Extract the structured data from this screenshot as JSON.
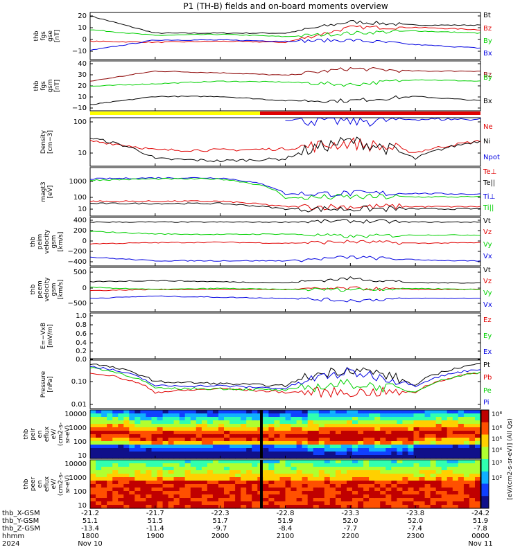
{
  "title": "P1 (TH-B) fields and on-board moments overview",
  "colors": {
    "black": "#000000",
    "red": "#e00000",
    "green": "#00d000",
    "blue": "#0000e0",
    "dark_red": "#8b0000",
    "orb_yellow": "#ffff00",
    "orb_red": "#e00000"
  },
  "panels": [
    {
      "id": "fgs_gse",
      "ylabel": [
        "thb",
        "fgs",
        "gse",
        "[nT]"
      ],
      "ticks": [
        "20",
        "10",
        "0",
        "−10"
      ],
      "ylim": [
        -18,
        23
      ],
      "legend": [
        {
          "text": "Bt",
          "color": "#000000"
        },
        {
          "text": "Bz",
          "color": "#e00000"
        },
        {
          "text": "By",
          "color": "#00d000"
        },
        {
          "text": "Bx",
          "color": "#0000e0"
        }
      ]
    },
    {
      "id": "fgs_gsm",
      "ylabel": [
        "thb",
        "fgs",
        "gsm",
        "[nT]"
      ],
      "ticks": [
        "40",
        "30",
        "20",
        "10",
        "0",
        "−10"
      ],
      "ylim": [
        -17,
        42
      ],
      "legend": [
        {
          "text": "Bz",
          "color": "#8b0000"
        },
        {
          "text": "By",
          "color": "#00d000"
        },
        {
          "text": "Bx",
          "color": "#000000"
        }
      ]
    },
    {
      "id": "density",
      "ylabel": [
        "Density",
        "[cm−3]"
      ],
      "ticks": [
        "100",
        "10"
      ],
      "log": true,
      "ylim": [
        5,
        110
      ],
      "legend": [
        {
          "text": "Ne",
          "color": "#e00000"
        },
        {
          "text": "Ni",
          "color": "#000000"
        },
        {
          "text": "Npot",
          "color": "#0000e0"
        }
      ]
    },
    {
      "id": "temp",
      "ylabel": [
        "magt3",
        "[eV]"
      ],
      "ticks": [
        "1000",
        "100",
        "10"
      ],
      "log": true,
      "ylim": [
        6,
        3000
      ],
      "legend": [
        {
          "text": "Te⊥",
          "color": "#e00000"
        },
        {
          "text": "Te||",
          "color": "#000000"
        },
        {
          "text": "Ti⊥",
          "color": "#0000e0"
        },
        {
          "text": "Ti||",
          "color": "#00d000"
        }
      ]
    },
    {
      "id": "peim_vel",
      "ylabel": [
        "thb",
        "peim",
        "velocity",
        "gsm",
        "[km/s]"
      ],
      "ticks": [
        "400",
        "200",
        "0",
        "−200",
        "−400"
      ],
      "ylim": [
        -470,
        470
      ],
      "legend": [
        {
          "text": "Vt",
          "color": "#000000"
        },
        {
          "text": "Vz",
          "color": "#e00000"
        },
        {
          "text": "Vy",
          "color": "#00d000"
        },
        {
          "text": "Vx",
          "color": "#0000e0"
        }
      ]
    },
    {
      "id": "peem_vel",
      "ylabel": [
        "thb",
        "peem",
        "velocity",
        "gsm",
        "[km/s]"
      ],
      "ticks": [
        "500",
        "0",
        "−500"
      ],
      "ylim": [
        -900,
        1100
      ],
      "legend": [
        {
          "text": "Vt",
          "color": "#000000"
        },
        {
          "text": "Vz",
          "color": "#e00000"
        },
        {
          "text": "Vy",
          "color": "#00d000"
        },
        {
          "text": "Vx",
          "color": "#0000e0"
        }
      ]
    },
    {
      "id": "efield",
      "ylabel": [
        "E=−VxB",
        "[mV/m]"
      ],
      "ticks": [
        "1.0",
        "0.8",
        "0.6",
        "0.4",
        "0.2",
        "0.0"
      ],
      "ylim": [
        -0.03,
        1.03
      ],
      "legend": [
        {
          "text": "Ez",
          "color": "#e00000"
        },
        {
          "text": "Ey",
          "color": "#00d000"
        },
        {
          "text": "Ex",
          "color": "#0000e0"
        }
      ]
    },
    {
      "id": "pressure",
      "ylabel": [
        "Pressure",
        "[nPa]"
      ],
      "ticks": [
        "0.10",
        "0.01"
      ],
      "log": true,
      "ylim": [
        0.008,
        0.4
      ],
      "legend": [
        {
          "text": "Pt",
          "color": "#000000"
        },
        {
          "text": "Pb",
          "color": "#e00000"
        },
        {
          "text": "Pe",
          "color": "#00d000"
        },
        {
          "text": "Pi",
          "color": "#0000e0"
        }
      ]
    },
    {
      "id": "peir_spec",
      "ylabel": [
        "thb",
        "peir",
        "en",
        "eflux",
        "eV/",
        "(cm2-s-",
        "sr-eV)"
      ],
      "ticks": [
        "10000",
        "1000",
        "100",
        "10"
      ]
    },
    {
      "id": "peer_spec",
      "ylabel": [
        "thb",
        "peer",
        "en",
        "eflux",
        "eV/",
        "(cm2-s-",
        "sr-eV)"
      ],
      "ticks": [
        "10000",
        "1000",
        "100",
        "10"
      ]
    }
  ],
  "colorbar": {
    "ticks": [
      "10⁸",
      "10⁶",
      "10⁵",
      "10⁴",
      "10³",
      "10²"
    ],
    "label": "[eV/(cm2-s-sr-eV)] (All Qs)"
  },
  "x_axis": {
    "row_labels": [
      "thb_X-GSM",
      "thb_Y-GSM",
      "thb_Z-GSM",
      "hhmm",
      "2024"
    ],
    "ticks": [
      {
        "x": "-21.2",
        "y": "51.1",
        "z": "-13.4",
        "hhmm": "1800",
        "date": "Nov 10"
      },
      {
        "x": "-21.7",
        "y": "51.5",
        "z": "-11.4",
        "hhmm": "1900",
        "date": ""
      },
      {
        "x": "-22.3",
        "y": "51.7",
        "z": "-9.7",
        "hhmm": "2000",
        "date": ""
      },
      {
        "x": "-22.8",
        "y": "51.9",
        "z": "-8.4",
        "hhmm": "2100",
        "date": ""
      },
      {
        "x": "-23.3",
        "y": "52.0",
        "z": "-7.7",
        "hhmm": "2200",
        "date": ""
      },
      {
        "x": "-23.8",
        "y": "52.0",
        "z": "-7.4",
        "hhmm": "2300",
        "date": ""
      },
      {
        "x": "-24.2",
        "y": "51.9",
        "z": "-7.8",
        "hhmm": "0000",
        "date": "Nov 11"
      }
    ]
  },
  "chart_data": {
    "type": "line",
    "title": "P1 (TH-B) fields and on-board moments overview",
    "x": [
      "1800",
      "1900",
      "2000",
      "2100",
      "2200",
      "2300",
      "0000"
    ],
    "x_unit": "hhmm",
    "series": [
      {
        "name": "Bt",
        "panel": "fgs_gse",
        "values": [
          20,
          5,
          5,
          5,
          15,
          12,
          12
        ]
      },
      {
        "name": "Bz",
        "panel": "fgs_gse",
        "values": [
          -2,
          -3,
          -2,
          -3,
          10,
          10,
          8
        ]
      },
      {
        "name": "By",
        "panel": "fgs_gse",
        "values": [
          8,
          3,
          4,
          2,
          5,
          7,
          5
        ]
      },
      {
        "name": "Bx",
        "panel": "fgs_gse",
        "values": [
          -10,
          -1,
          -1,
          -2,
          -1,
          -5,
          -8
        ]
      },
      {
        "name": "Bz",
        "panel": "fgs_gsm",
        "values": [
          18,
          30,
          28,
          25,
          33,
          30,
          30
        ]
      },
      {
        "name": "By",
        "panel": "fgs_gsm",
        "values": [
          12,
          15,
          18,
          17,
          14,
          20,
          18
        ]
      },
      {
        "name": "Bx",
        "panel": "fgs_gsm",
        "values": [
          -10,
          0,
          0,
          -5,
          -5,
          0,
          -5
        ]
      },
      {
        "name": "Ne",
        "panel": "density",
        "values": [
          25,
          14,
          14,
          15,
          22,
          12,
          25
        ]
      },
      {
        "name": "Ni",
        "panel": "density",
        "values": [
          30,
          8,
          7,
          8,
          25,
          8,
          25
        ]
      },
      {
        "name": "Npot",
        "panel": "density",
        "values": [
          null,
          null,
          null,
          100,
          90,
          100,
          100
        ]
      },
      {
        "name": "Te⊥",
        "panel": "temp",
        "values": [
          40,
          40,
          40,
          20,
          20,
          20,
          20
        ]
      },
      {
        "name": "Te||",
        "panel": "temp",
        "values": [
          30,
          30,
          30,
          15,
          15,
          15,
          15
        ]
      },
      {
        "name": "Ti⊥",
        "panel": "temp",
        "values": [
          700,
          800,
          800,
          100,
          110,
          110,
          100
        ]
      },
      {
        "name": "Ti||",
        "panel": "temp",
        "values": [
          600,
          700,
          700,
          60,
          70,
          70,
          70
        ]
      },
      {
        "name": "Vt",
        "panel": "peim_vel",
        "values": [
          380,
          380,
          380,
          380,
          400,
          380,
          380
        ]
      },
      {
        "name": "Vz",
        "panel": "peim_vel",
        "values": [
          -40,
          -20,
          -10,
          -30,
          0,
          -30,
          -20
        ]
      },
      {
        "name": "Vy",
        "panel": "peim_vel",
        "values": [
          200,
          150,
          140,
          150,
          100,
          130,
          130
        ]
      },
      {
        "name": "Vx",
        "panel": "peim_vel",
        "values": [
          -300,
          -370,
          -370,
          -370,
          -300,
          -350,
          -380
        ]
      },
      {
        "name": "Vt",
        "panel": "peem_vel",
        "values": [
          450,
          500,
          450,
          400,
          600,
          400,
          400
        ]
      },
      {
        "name": "Vz",
        "panel": "peem_vel",
        "values": [
          50,
          100,
          100,
          100,
          150,
          100,
          100
        ]
      },
      {
        "name": "Vy",
        "panel": "peem_vel",
        "values": [
          200,
          100,
          150,
          100,
          100,
          150,
          100
        ]
      },
      {
        "name": "Vx",
        "panel": "peem_vel",
        "values": [
          -300,
          -200,
          -250,
          -300,
          -400,
          -300,
          -300
        ]
      },
      {
        "name": "Pt",
        "panel": "pressure",
        "values": [
          0.3,
          0.07,
          0.06,
          0.05,
          0.2,
          0.05,
          0.3
        ]
      },
      {
        "name": "Pb",
        "panel": "pressure",
        "values": [
          0.15,
          0.03,
          0.04,
          0.03,
          0.03,
          0.03,
          0.15
        ]
      },
      {
        "name": "Pe",
        "panel": "pressure",
        "values": [
          0.22,
          0.04,
          0.04,
          0.035,
          0.06,
          0.03,
          0.15
        ]
      },
      {
        "name": "Pi",
        "panel": "pressure",
        "values": [
          0.25,
          0.05,
          0.05,
          0.04,
          0.15,
          0.05,
          0.2
        ]
      }
    ]
  }
}
